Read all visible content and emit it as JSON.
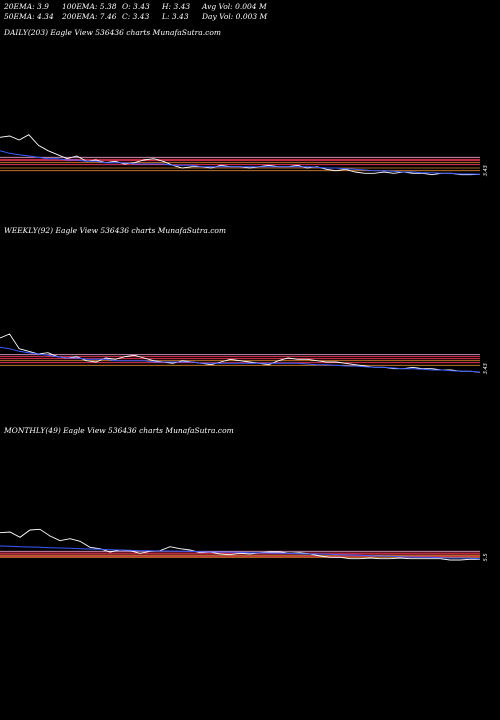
{
  "header": {
    "row1": [
      "20EMA: 3.9",
      "100EMA: 5.38",
      "O: 3.43",
      "H: 3.43",
      "Avg Vol: 0.004  M"
    ],
    "row2": [
      "50EMA: 4.34",
      "200EMA: 7.46",
      "C: 3.43",
      "L: 3.43",
      "Day Vol: 0.003  M"
    ]
  },
  "colors": {
    "background": "#000000",
    "price": "#ffffff",
    "ema_blue": "#3b5bff",
    "level_red": "#ff3a5c",
    "level_orange": "#d9862f",
    "level_pink": "#e8a0c8"
  },
  "chart_data": [
    {
      "type": "line",
      "label": "DAILY(203) Eagle   View  536436  charts MunafaSutra.com",
      "x": [
        0,
        1,
        2,
        3,
        4,
        5,
        6,
        7,
        8,
        9,
        10,
        11,
        12,
        13,
        14,
        15,
        16,
        17,
        18,
        19,
        20,
        21,
        22,
        23,
        24,
        25,
        26,
        27,
        28,
        29,
        30,
        31,
        32,
        33,
        34,
        35,
        36,
        37,
        38,
        39,
        40,
        41,
        42,
        43,
        44,
        45,
        46,
        47,
        48,
        49,
        50
      ],
      "series": [
        {
          "values": [
            6.2,
            6.3,
            6.0,
            6.4,
            5.6,
            5.2,
            4.9,
            4.6,
            4.8,
            4.4,
            4.5,
            4.3,
            4.4,
            4.2,
            4.3,
            4.5,
            4.6,
            4.4,
            4.1,
            3.9,
            4.0,
            4.0,
            3.9,
            4.1,
            4.0,
            4.0,
            3.9,
            4.0,
            4.1,
            4.0,
            4.0,
            4.1,
            3.9,
            4.0,
            3.8,
            3.7,
            3.8,
            3.6,
            3.5,
            3.5,
            3.6,
            3.5,
            3.6,
            3.5,
            3.5,
            3.4,
            3.5,
            3.5,
            3.4,
            3.4,
            3.43
          ]
        },
        {
          "values": [
            5.2,
            5.0,
            4.9,
            4.8,
            4.7,
            4.6,
            4.6,
            4.5,
            4.5,
            4.4,
            4.4,
            4.3,
            4.3,
            4.3,
            4.2,
            4.2,
            4.2,
            4.2,
            4.1,
            4.1,
            4.1,
            4.0,
            4.0,
            4.0,
            4.0,
            4.0,
            4.0,
            4.0,
            4.0,
            4.0,
            4.0,
            4.0,
            4.0,
            3.95,
            3.9,
            3.9,
            3.85,
            3.8,
            3.75,
            3.7,
            3.7,
            3.65,
            3.6,
            3.6,
            3.55,
            3.55,
            3.5,
            3.5,
            3.45,
            3.45,
            3.43
          ]
        }
      ],
      "levels": [
        4.7,
        4.55,
        4.45,
        4.3,
        4.15,
        3.9,
        3.7
      ],
      "ylim": [
        3.0,
        7.5
      ]
    },
    {
      "type": "line",
      "label": "WEEKLY(92) Eagle   View  536436  charts MunafaSutra.com",
      "x": [
        0,
        1,
        2,
        3,
        4,
        5,
        6,
        7,
        8,
        9,
        10,
        11,
        12,
        13,
        14,
        15,
        16,
        17,
        18,
        19,
        20,
        21,
        22,
        23,
        24,
        25,
        26,
        27,
        28,
        29,
        30,
        31,
        32,
        33,
        34,
        35,
        36,
        37,
        38,
        39,
        40,
        41,
        42,
        43,
        44,
        45,
        46,
        47,
        48,
        49,
        50
      ],
      "series": [
        {
          "values": [
            6.0,
            6.3,
            5.2,
            5.0,
            4.8,
            4.9,
            4.6,
            4.5,
            4.6,
            4.3,
            4.2,
            4.5,
            4.4,
            4.6,
            4.7,
            4.5,
            4.3,
            4.2,
            4.1,
            4.3,
            4.2,
            4.1,
            4.0,
            4.2,
            4.4,
            4.3,
            4.2,
            4.1,
            4.0,
            4.3,
            4.5,
            4.4,
            4.4,
            4.3,
            4.2,
            4.2,
            4.1,
            4.0,
            3.9,
            3.8,
            3.8,
            3.7,
            3.7,
            3.8,
            3.7,
            3.7,
            3.6,
            3.6,
            3.5,
            3.5,
            3.43
          ]
        },
        {
          "values": [
            5.3,
            5.2,
            5.0,
            4.9,
            4.8,
            4.7,
            4.6,
            4.5,
            4.5,
            4.4,
            4.4,
            4.4,
            4.3,
            4.3,
            4.3,
            4.3,
            4.2,
            4.2,
            4.2,
            4.2,
            4.2,
            4.1,
            4.1,
            4.1,
            4.1,
            4.1,
            4.1,
            4.1,
            4.1,
            4.1,
            4.1,
            4.1,
            4.05,
            4.0,
            4.0,
            3.95,
            3.9,
            3.9,
            3.85,
            3.8,
            3.8,
            3.75,
            3.7,
            3.7,
            3.65,
            3.6,
            3.6,
            3.55,
            3.5,
            3.5,
            3.45
          ]
        }
      ],
      "levels": [
        4.75,
        4.6,
        4.45,
        4.3,
        4.15,
        3.95
      ],
      "ylim": [
        3.0,
        7.5
      ]
    },
    {
      "type": "line",
      "label": "MONTHLY(49) Eagle   View  536436  charts MunafaSutra.com",
      "x": [
        0,
        1,
        2,
        3,
        4,
        5,
        6,
        7,
        8,
        9,
        10,
        11,
        12,
        13,
        14,
        15,
        16,
        17,
        18,
        19,
        20,
        21,
        22,
        23,
        24,
        25,
        26,
        27,
        28,
        29,
        30,
        31,
        32,
        33,
        34,
        35,
        36,
        37,
        38,
        39,
        40,
        41,
        42,
        43,
        44,
        45,
        46,
        47,
        48
      ],
      "series": [
        {
          "values": [
            9.5,
            9.6,
            8.8,
            9.9,
            10.0,
            9.0,
            8.3,
            8.6,
            8.2,
            7.3,
            7.1,
            6.6,
            6.9,
            6.8,
            6.4,
            6.7,
            6.8,
            7.4,
            7.1,
            6.9,
            6.5,
            6.6,
            6.3,
            6.2,
            6.4,
            6.3,
            6.5,
            6.6,
            6.6,
            6.4,
            6.5,
            6.3,
            6.0,
            5.8,
            5.8,
            5.6,
            5.6,
            5.7,
            5.6,
            5.6,
            5.7,
            5.6,
            5.6,
            5.6,
            5.6,
            5.4,
            5.4,
            5.5,
            5.5
          ]
        },
        {
          "values": [
            7.5,
            7.45,
            7.4,
            7.35,
            7.3,
            7.25,
            7.2,
            7.15,
            7.1,
            7.05,
            7.0,
            6.95,
            6.9,
            6.85,
            6.8,
            6.8,
            6.75,
            6.75,
            6.7,
            6.7,
            6.65,
            6.6,
            6.6,
            6.55,
            6.55,
            6.5,
            6.5,
            6.45,
            6.4,
            6.4,
            6.35,
            6.3,
            6.3,
            6.25,
            6.2,
            6.15,
            6.1,
            6.05,
            6.0,
            5.95,
            5.9,
            5.85,
            5.8,
            5.8,
            5.75,
            5.7,
            5.7,
            5.65,
            5.6
          ]
        }
      ],
      "levels": [
        6.7,
        6.45,
        6.3,
        6.1,
        5.95,
        5.8
      ],
      "ylim": [
        3.0,
        12.0
      ]
    }
  ]
}
